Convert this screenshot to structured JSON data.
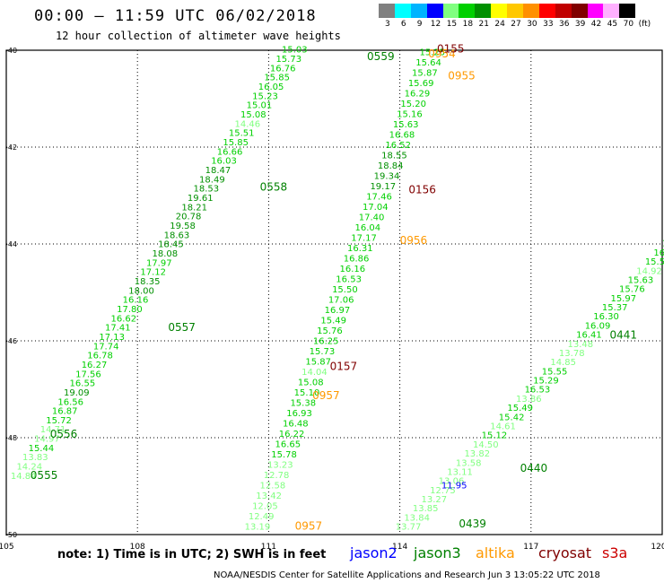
{
  "header": {
    "title": "00:00 — 11:59 UTC 06/02/2018",
    "subtitle": "12 hour collection of altimeter wave heights"
  },
  "colorbar": {
    "colors": [
      "#808080",
      "#00ffff",
      "#00b4ff",
      "#0000ff",
      "#80ff80",
      "#00d000",
      "#009000",
      "#ffff00",
      "#ffc800",
      "#ff9000",
      "#ff0000",
      "#c00000",
      "#800000",
      "#ff00ff",
      "#ffb0ff",
      "#000000"
    ],
    "labels": [
      "3",
      "6",
      "9",
      "12",
      "15",
      "18",
      "21",
      "24",
      "27",
      "30",
      "33",
      "36",
      "39",
      "42",
      "45",
      "70"
    ],
    "unit": "(ft)"
  },
  "axes": {
    "lon_labels": [
      "105",
      "108",
      "111",
      "114",
      "117",
      "120"
    ],
    "lat_labels": [
      "-40",
      "-42",
      "-44",
      "-46",
      "-48",
      "-50"
    ]
  },
  "map_data": {
    "lon_range": [
      105,
      120
    ],
    "lat_range": [
      -50,
      -40
    ],
    "tracks": [
      {
        "satellite": "jason3",
        "start": [
          105.1,
          -48.85
        ],
        "end": [
          111.3,
          -40.05
        ],
        "values": [
          "14.84",
          "14.24",
          "13.83",
          "15.44",
          "14.97",
          "14.71",
          "15.72",
          "16.87",
          "16.56",
          "19.09",
          "16.55",
          "17.56",
          "16.27",
          "16.78",
          "17.74",
          "17.13",
          "17.41",
          "16.62",
          "17.80",
          "16.16",
          "18.00",
          "18.35",
          "17.12",
          "17.97",
          "18.08",
          "18.45",
          "18.63",
          "19.58",
          "20.78",
          "18.21",
          "19.61",
          "18.53",
          "18.49",
          "18.47",
          "16.03",
          "16.66",
          "15.85",
          "15.51",
          "14.46",
          "15.08",
          "15.01",
          "15.23",
          "16.05",
          "15.85",
          "16.76",
          "15.73",
          "15.03"
        ],
        "times": [
          {
            "text": "0555",
            "lon": 105.55,
            "lat": -48.85
          },
          {
            "text": "0556",
            "lon": 106.0,
            "lat": -48.0
          },
          {
            "text": "0557",
            "lon": 108.7,
            "lat": -45.8
          },
          {
            "text": "0558",
            "lon": 110.8,
            "lat": -42.9
          },
          {
            "text": "0559",
            "lon": 113.25,
            "lat": -40.2
          }
        ]
      },
      {
        "satellite": "jason3",
        "start": [
          110.45,
          -49.9
        ],
        "end": [
          114.45,
          -40.1
        ],
        "values": [
          "13.19",
          "12.49",
          "12.05",
          "13.42",
          "12.58",
          "12.78",
          "13.23",
          "15.78",
          "16.65",
          "16.22",
          "16.48",
          "16.93",
          "15.38",
          "15.10",
          "15.08",
          "14.04",
          "15.87",
          "15.73",
          "16.25",
          "15.76",
          "15.49",
          "16.97",
          "17.06",
          "15.50",
          "16.53",
          "16.16",
          "16.86",
          "16.31",
          "17.17",
          "16.04",
          "17.40",
          "17.04",
          "17.46",
          "19.17",
          "19.34",
          "18.84",
          "18.55",
          "16.52",
          "16.68",
          "15.63",
          "15.16",
          "15.20",
          "16.29",
          "15.69",
          "15.87",
          "15.64",
          "15.25"
        ],
        "times": [
          {
            "text": "0954",
            "lon": 114.65,
            "lat": -40.15
          },
          {
            "text": "0955",
            "lon": 115.1,
            "lat": -40.6
          },
          {
            "text": "0956",
            "lon": 114.0,
            "lat": -44.0
          },
          {
            "text": "0957",
            "lon": 112.0,
            "lat": -47.2
          },
          {
            "text": "0957",
            "lon": 111.6,
            "lat": -49.9
          }
        ]
      },
      {
        "satellite": "jason3",
        "start": [
          113.9,
          -49.9
        ],
        "end": [
          120.0,
          -44.05
        ],
        "values": [
          "13.77",
          "13.84",
          "13.85",
          "13.27",
          "12.75",
          "13.06",
          "13.11",
          "13.58",
          "13.82",
          "14.50",
          "15.12",
          "14.61",
          "15.42",
          "15.49",
          "13.86",
          "16.53",
          "15.29",
          "15.55",
          "14.85",
          "13.78",
          "13.48",
          "16.41",
          "16.09",
          "16.30",
          "15.37",
          "15.97",
          "15.76",
          "15.63",
          "14.92",
          "15.52",
          "16.61",
          "16.27"
        ],
        "times": [
          {
            "text": "0439",
            "lon": 115.35,
            "lat": -49.85
          },
          {
            "text": "0440",
            "lon": 116.75,
            "lat": -48.7
          },
          {
            "text": "0441",
            "lon": 118.8,
            "lat": -45.95
          }
        ]
      }
    ],
    "labels": [
      {
        "text": "0155",
        "lon": 114.85,
        "lat": -40.05,
        "satellite": "cryosat"
      },
      {
        "text": "0156",
        "lon": 114.2,
        "lat": -42.95,
        "satellite": "cryosat"
      },
      {
        "text": "0157",
        "lon": 112.4,
        "lat": -46.6,
        "satellite": "cryosat"
      },
      {
        "text": "11.95",
        "lon": 114.95,
        "lat": -49.05,
        "satellite": "jason2"
      }
    ]
  },
  "satellite_colors": {
    "jason2": "#0000ff",
    "jason3": "#008000",
    "altika": "#ff9900",
    "cryosat": "#800000",
    "s3a": "#cc0000"
  },
  "note": "note: 1) Time is in UTC; 2) SWH is in feet",
  "legend": [
    {
      "key": "jason2",
      "label": "jason2"
    },
    {
      "key": "jason3",
      "label": "jason3"
    },
    {
      "key": "altika",
      "label": "altika"
    },
    {
      "key": "cryosat",
      "label": "cryosat"
    },
    {
      "key": "s3a",
      "label": "s3a"
    }
  ],
  "footer": "NOAA/NESDIS Center for Satellite Applications and Research   Jun  3 13:05:22 UTC 2018"
}
